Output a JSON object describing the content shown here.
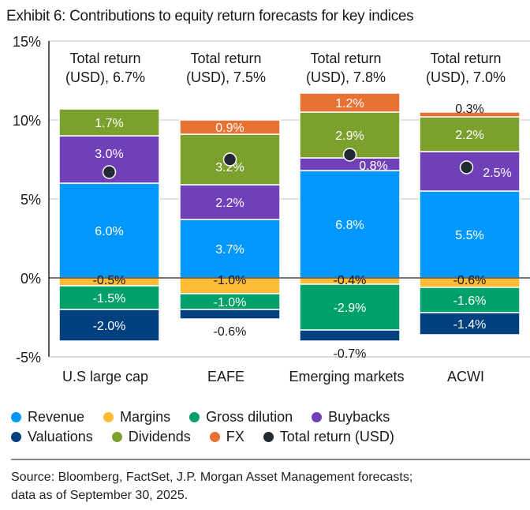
{
  "title": "Exhibit 6: Contributions to equity return forecasts for key indices",
  "chart_data": {
    "type": "bar",
    "stacked": true,
    "title": "Exhibit 6: Contributions to equity return forecasts for key indices",
    "xlabel": "",
    "ylabel": "",
    "ylim": [
      -5,
      15
    ],
    "yticks": [
      -5,
      0,
      5,
      10,
      15
    ],
    "ytick_labels": [
      "-5%",
      "0%",
      "5%",
      "10%",
      "15%"
    ],
    "grid": true,
    "categories": [
      "U.S large cap",
      "EAFE",
      "Emerging markets",
      "ACWI"
    ],
    "series": [
      {
        "name": "Revenue",
        "color": "#0097ff",
        "values": [
          6.0,
          3.7,
          6.8,
          5.5
        ],
        "labels": [
          "6.0%",
          "3.7%",
          "6.8%",
          "5.5%"
        ]
      },
      {
        "name": "Margins",
        "color": "#ffbb33",
        "values": [
          -0.5,
          -1.0,
          -0.4,
          -0.6
        ],
        "labels": [
          "-0.5%",
          "-1.0%",
          "-0.4%",
          "-0.6%"
        ]
      },
      {
        "name": "Gross dilution",
        "color": "#00a06a",
        "values": [
          -1.5,
          -1.0,
          -2.9,
          -1.6
        ],
        "labels": [
          "-1.5%",
          "-1.0%",
          "-2.9%",
          "-1.6%"
        ]
      },
      {
        "name": "Buybacks",
        "color": "#7040b8",
        "values": [
          3.0,
          2.2,
          0.8,
          2.5
        ],
        "labels": [
          "3.0%",
          "2.2%",
          "0.8%",
          "2.5%"
        ]
      },
      {
        "name": "Valuations",
        "color": "#00407f",
        "values": [
          -2.0,
          -0.6,
          -0.7,
          -1.4
        ],
        "labels": [
          "-2.0%",
          "-0.6%",
          "-0.7%",
          "-1.4%"
        ]
      },
      {
        "name": "Dividends",
        "color": "#7ba02e",
        "values": [
          1.7,
          3.2,
          2.9,
          2.2
        ],
        "labels": [
          "1.7%",
          "3.2%",
          "2.9%",
          "2.2%"
        ]
      },
      {
        "name": "FX",
        "color": "#e97232",
        "values": [
          0.0,
          0.9,
          1.2,
          0.3
        ],
        "labels": [
          "",
          "0.9%",
          "1.2%",
          "0.3%"
        ]
      }
    ],
    "total_return": {
      "name": "Total return (USD)",
      "color": "#222a33",
      "values": [
        6.7,
        7.5,
        7.8,
        7.0
      ],
      "annotations": [
        [
          "Total return",
          "(USD), 6.7%"
        ],
        [
          "Total return",
          "(USD), 7.5%"
        ],
        [
          "Total return",
          "(USD), 7.8%"
        ],
        [
          "Total return",
          "(USD), 7.0%"
        ]
      ]
    },
    "legend_placement": "bottom"
  },
  "legend": [
    [
      {
        "label": "Revenue",
        "color": "#0097ff"
      },
      {
        "label": "Margins",
        "color": "#ffbb33"
      },
      {
        "label": "Gross dilution",
        "color": "#00a06a"
      },
      {
        "label": "Buybacks",
        "color": "#7040b8"
      }
    ],
    [
      {
        "label": "Valuations",
        "color": "#00407f"
      },
      {
        "label": "Dividends",
        "color": "#7ba02e"
      },
      {
        "label": "FX",
        "color": "#e97232"
      },
      {
        "label": "Total return (USD)",
        "color": "#222a33"
      }
    ]
  ],
  "source": {
    "line1": "Source: Bloomberg, FactSet, J.P. Morgan Asset Management forecasts;",
    "line2": "data as of September 30, 2025."
  }
}
